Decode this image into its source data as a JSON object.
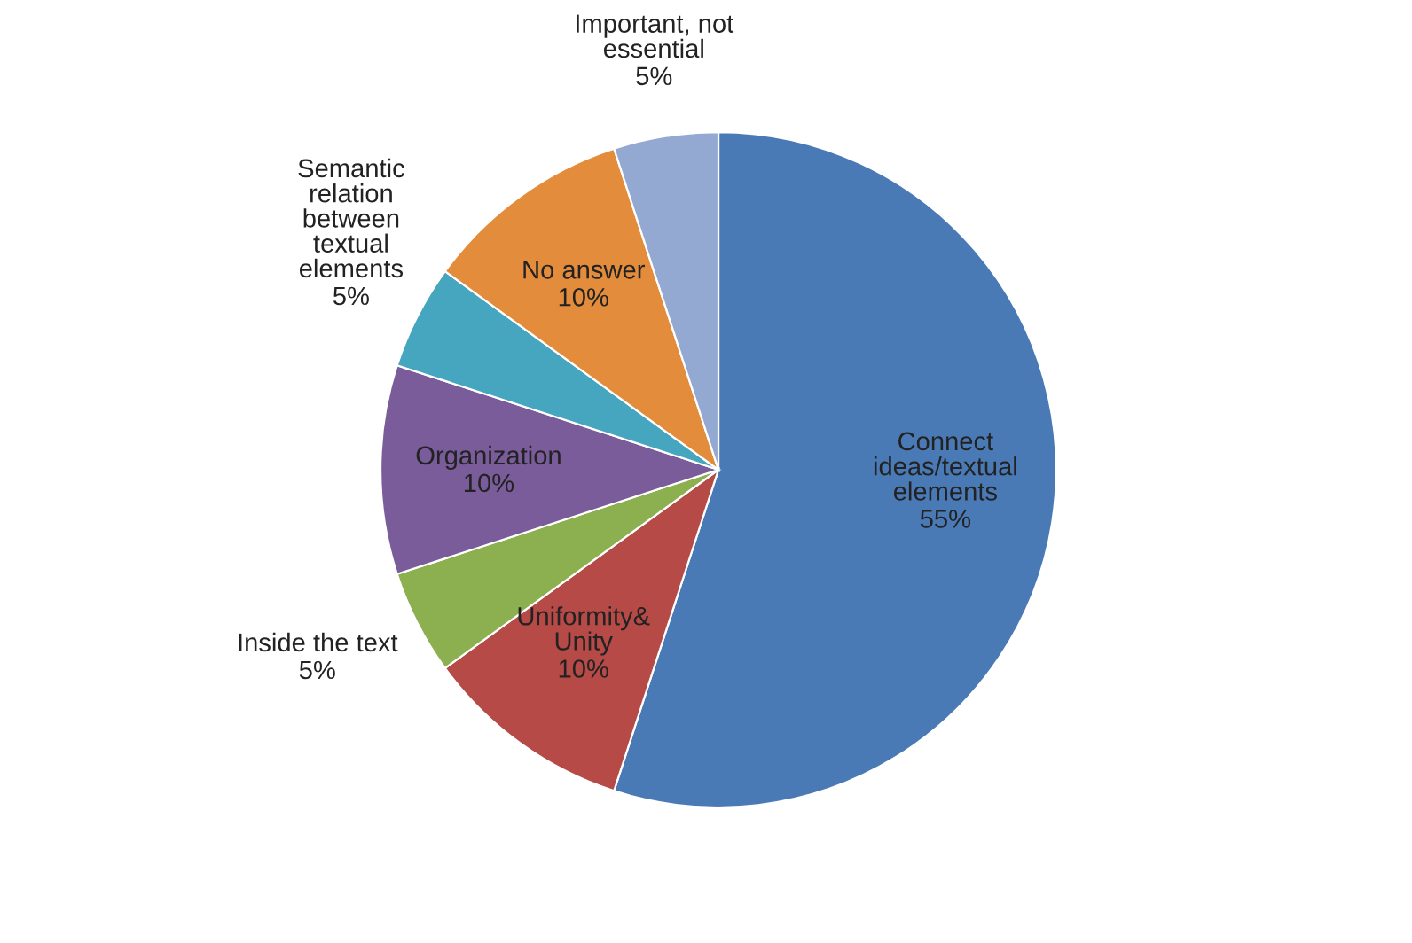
{
  "chart_data": {
    "type": "pie",
    "categories": [
      "Connect\nideas/textual\nelements",
      "Uniformity&\nUnity",
      "Inside the text",
      "Organization",
      "Semantic\nrelation\nbetween\ntextual\nelements",
      "No answer",
      "Important, not\nessential"
    ],
    "values": [
      55,
      10,
      5,
      10,
      5,
      10,
      5
    ],
    "value_labels": [
      "55%",
      "10%",
      "5%",
      "10%",
      "5%",
      "10%",
      "5%"
    ],
    "colors": [
      "#4a7ab5",
      "#b54a47",
      "#8cb050",
      "#7a5c9a",
      "#46a5bf",
      "#e38d3c",
      "#93a9d1"
    ]
  }
}
